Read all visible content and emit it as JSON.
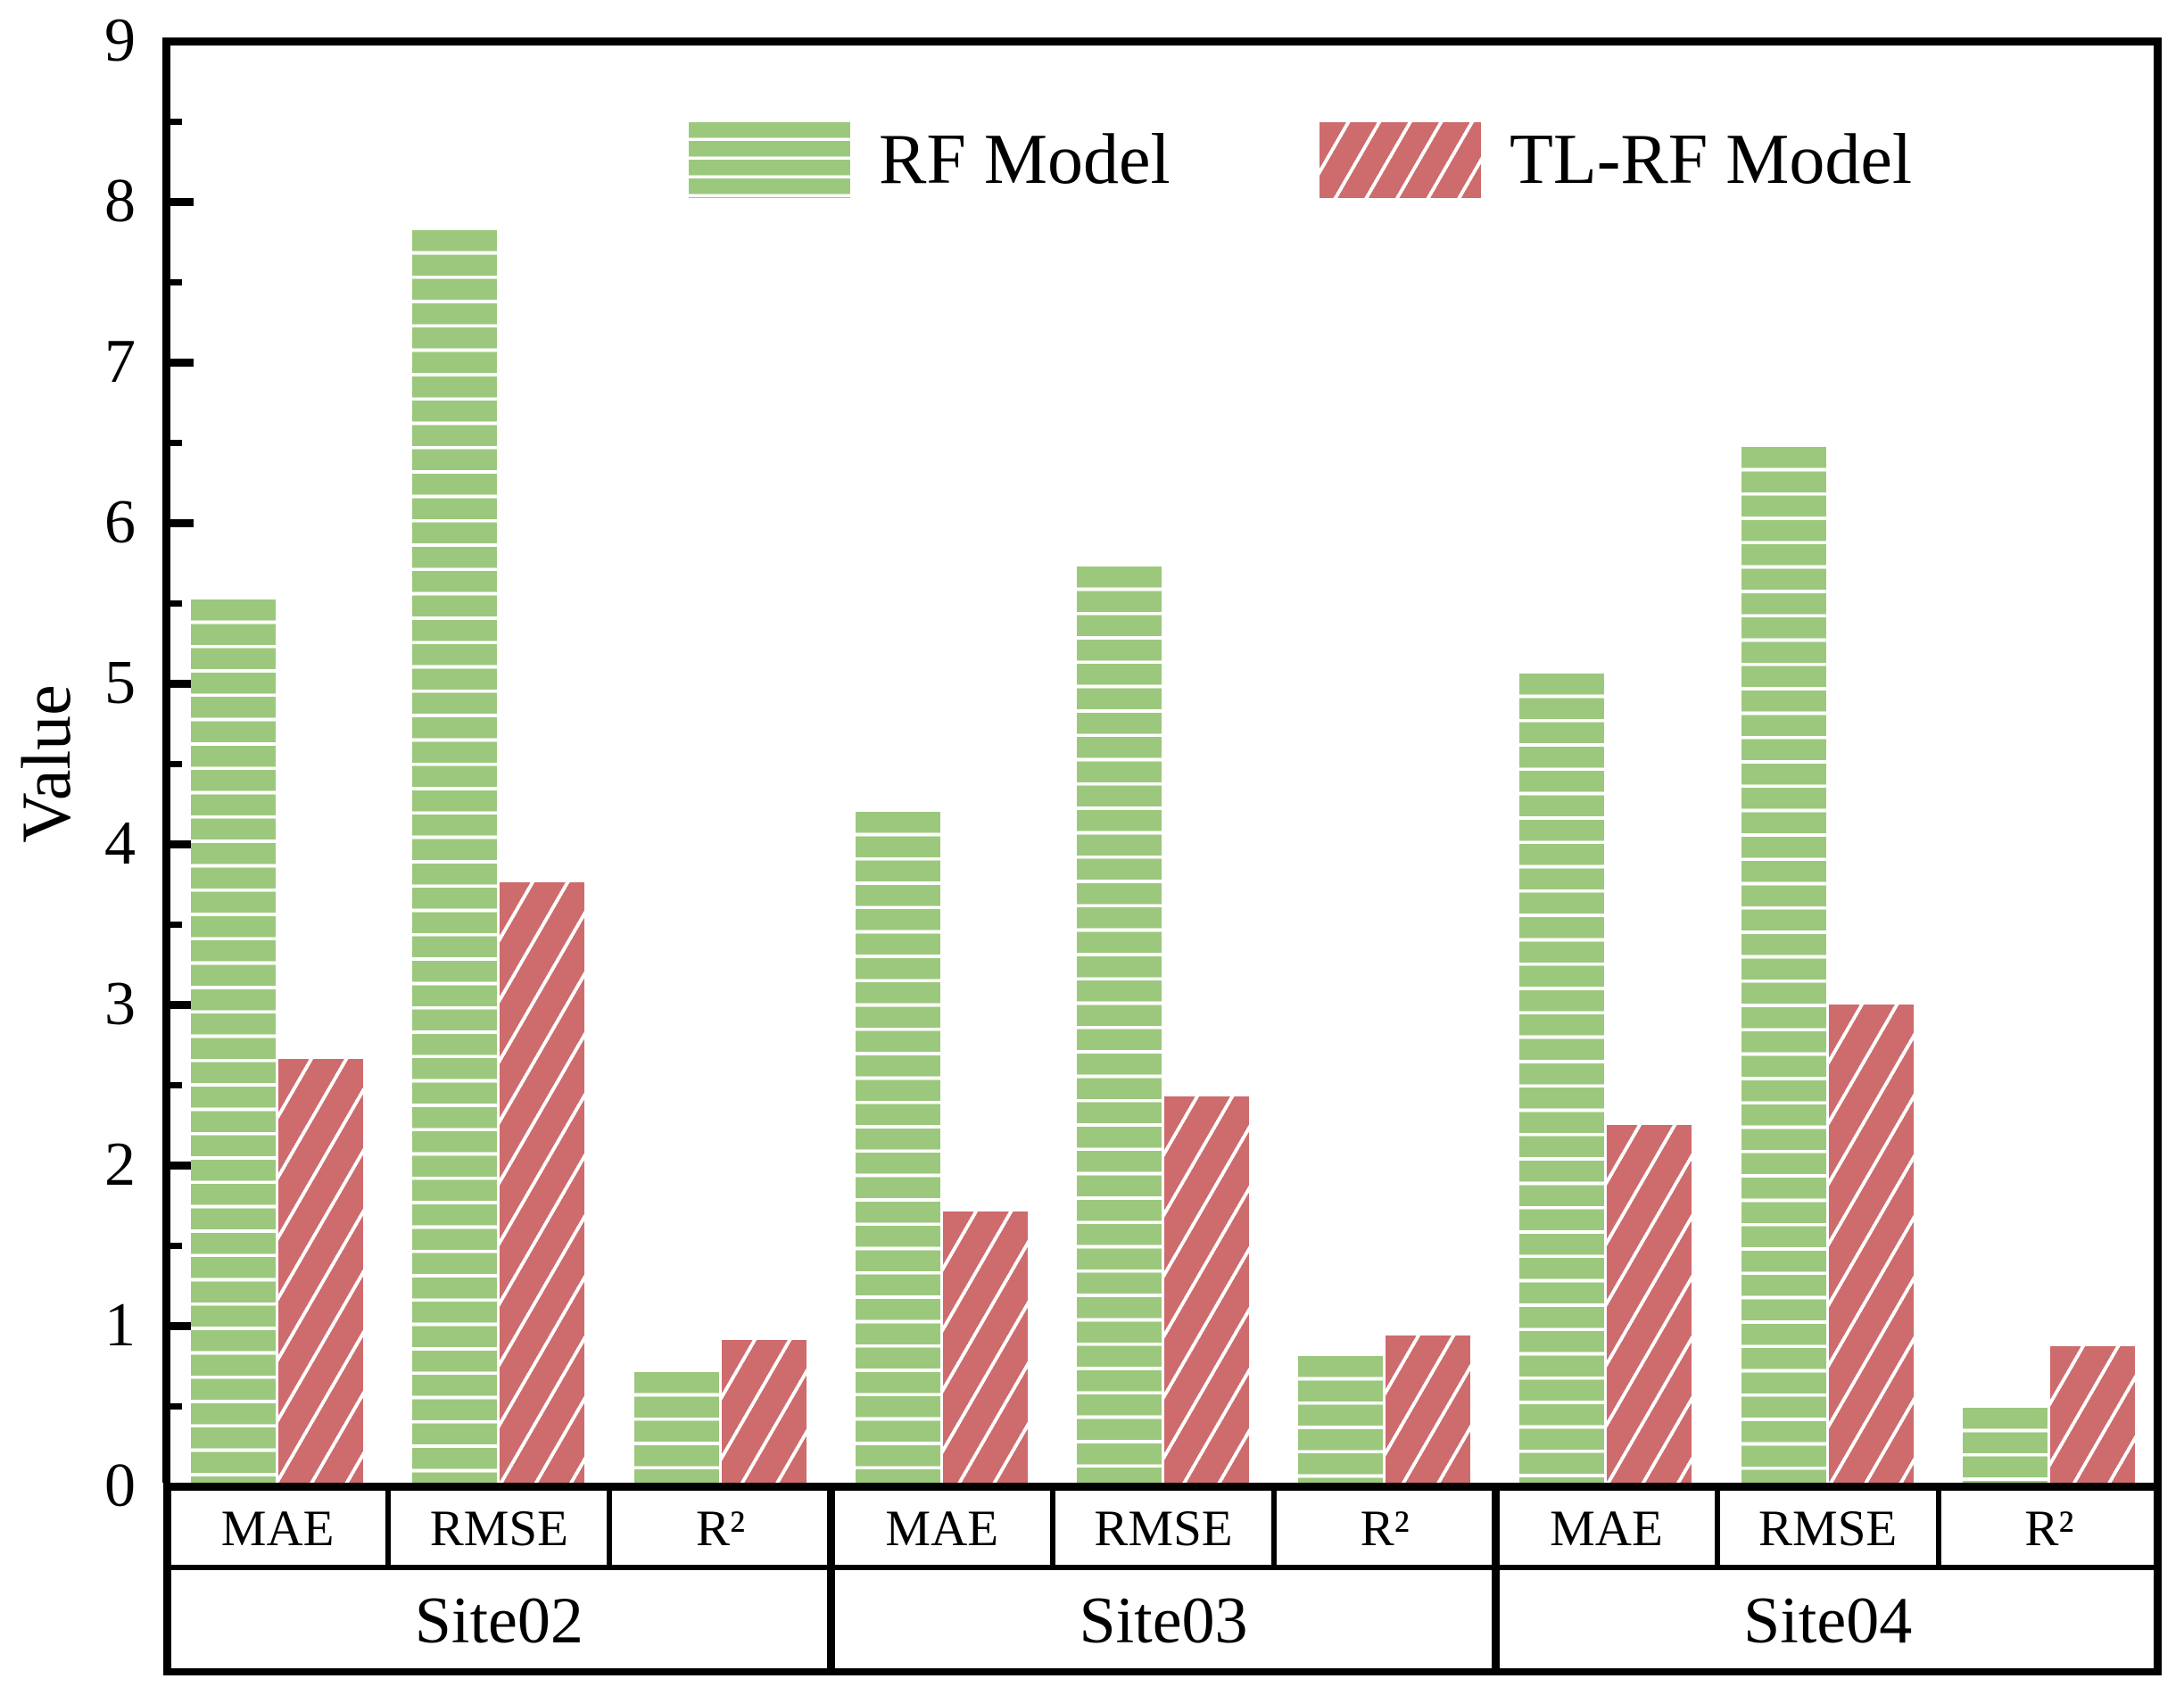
{
  "chart_data": {
    "type": "bar",
    "title": "",
    "ylabel": "Value",
    "xlabel": "",
    "ylim": [
      0,
      9
    ],
    "y_major_ticks": [
      0,
      1,
      2,
      3,
      4,
      5,
      6,
      7,
      8,
      9
    ],
    "y_minor_tick_step": 0.5,
    "grid": false,
    "legend_position": "top-center-inside",
    "groups": [
      "Site02",
      "Site03",
      "Site04"
    ],
    "metrics": [
      "MAE",
      "RMSE",
      "R²"
    ],
    "categories": [
      "Site02 MAE",
      "Site02 RMSE",
      "Site02 R²",
      "Site03 MAE",
      "Site03 RMSE",
      "Site03 R²",
      "Site04 MAE",
      "Site04 RMSE",
      "Site04 R²"
    ],
    "series": [
      {
        "name": "RF Model",
        "color": "#9CC87D",
        "hatch": "horizontal-lines",
        "values": [
          5.52,
          7.82,
          0.71,
          4.2,
          5.73,
          0.81,
          5.06,
          6.47,
          0.49
        ]
      },
      {
        "name": "TL-RF Model",
        "color": "#CD6B6D",
        "hatch": "diagonal-lines",
        "values": [
          2.66,
          3.76,
          0.91,
          1.71,
          2.43,
          0.94,
          2.25,
          3.0,
          0.87
        ]
      }
    ]
  },
  "colors": {
    "rf_green": "#9CC87D",
    "tlrf_red": "#CD6B6D",
    "axis": "#000000",
    "background": "#FFFFFF"
  }
}
